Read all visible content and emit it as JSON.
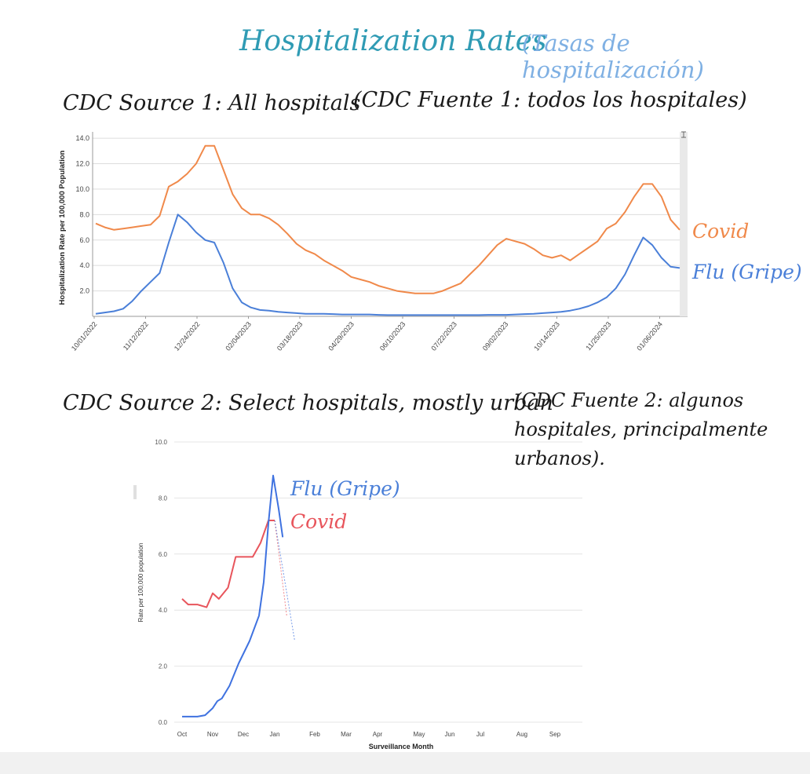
{
  "header": {
    "title": "Hospitalization Rates",
    "title_translation": "(Tasas de hospitalización)"
  },
  "section1": {
    "heading": "CDC Source 1: All hospitals",
    "heading_translation": "(CDC Fuente 1: todos los hospitales)",
    "label_covid": "Covid",
    "label_flu": "Flu (Gripe)"
  },
  "section2": {
    "heading": "CDC Source 2: Select hospitals, mostly urban",
    "heading_translation": "(CDC Fuente 2: algunos hospitales, principalmente urbanos).",
    "label_flu": "Flu (Gripe)",
    "label_covid": "Covid"
  },
  "colors": {
    "title": "#2f9bb4",
    "translation": "#7fb0e3",
    "covid_chart1": "#f0894a",
    "flu_chart1": "#4a7fd8",
    "covid_chart2": "#e8555c",
    "flu_chart2": "#3f72e0",
    "grid": "#dddddd"
  },
  "chart_data": [
    {
      "type": "line",
      "title": "",
      "xlabel": "",
      "ylabel": "Hospitalization Rate per 100,000 Population",
      "ylim": [
        0,
        14.5
      ],
      "yticks": [
        2.0,
        4.0,
        6.0,
        8.0,
        10.0,
        12.0,
        14.0
      ],
      "ytick_labels": [
        "2.0",
        "4.0",
        "6.0",
        "8.0",
        "10.0",
        "12.0",
        "14.0"
      ],
      "xtick_labels": [
        "10/01/2022",
        "11/12/2022",
        "12/24/2022",
        "02/04/2023",
        "03/18/2023",
        "04/29/2023",
        "06/10/2023",
        "07/22/2023",
        "09/02/2023",
        "10/14/2023",
        "11/25/2023",
        "01/06/2024"
      ],
      "grid": true,
      "series": [
        {
          "name": "Covid",
          "color": "#f0894a",
          "points": [
            [
              0,
              7.3
            ],
            [
              1,
              7.0
            ],
            [
              2,
              6.8
            ],
            [
              3,
              6.9
            ],
            [
              4,
              7.0
            ],
            [
              5,
              7.1
            ],
            [
              6,
              7.2
            ],
            [
              7,
              7.9
            ],
            [
              8,
              10.2
            ],
            [
              9,
              10.6
            ],
            [
              10,
              11.2
            ],
            [
              11,
              12.0
            ],
            [
              12,
              13.4
            ],
            [
              13,
              13.4
            ],
            [
              14,
              11.5
            ],
            [
              15,
              9.6
            ],
            [
              16,
              8.5
            ],
            [
              17,
              8.0
            ],
            [
              18,
              8.0
            ],
            [
              19,
              7.7
            ],
            [
              20,
              7.2
            ],
            [
              21,
              6.5
            ],
            [
              22,
              5.7
            ],
            [
              23,
              5.2
            ],
            [
              24,
              4.9
            ],
            [
              25,
              4.4
            ],
            [
              26,
              4.0
            ],
            [
              27,
              3.6
            ],
            [
              28,
              3.1
            ],
            [
              29,
              2.9
            ],
            [
              30,
              2.7
            ],
            [
              31,
              2.4
            ],
            [
              32,
              2.2
            ],
            [
              33,
              2.0
            ],
            [
              34,
              1.9
            ],
            [
              35,
              1.8
            ],
            [
              36,
              1.8
            ],
            [
              37,
              1.8
            ],
            [
              38,
              2.0
            ],
            [
              39,
              2.3
            ],
            [
              40,
              2.6
            ],
            [
              41,
              3.3
            ],
            [
              42,
              4.0
            ],
            [
              43,
              4.8
            ],
            [
              44,
              5.6
            ],
            [
              45,
              6.1
            ],
            [
              46,
              5.9
            ],
            [
              47,
              5.7
            ],
            [
              48,
              5.3
            ],
            [
              49,
              4.8
            ],
            [
              50,
              4.6
            ],
            [
              51,
              4.8
            ],
            [
              52,
              4.4
            ],
            [
              53,
              4.9
            ],
            [
              54,
              5.4
            ],
            [
              55,
              5.9
            ],
            [
              56,
              6.9
            ],
            [
              57,
              7.3
            ],
            [
              58,
              8.2
            ],
            [
              59,
              9.4
            ],
            [
              60,
              10.4
            ],
            [
              61,
              10.4
            ],
            [
              62,
              9.4
            ],
            [
              63,
              7.6
            ],
            [
              64,
              6.8
            ]
          ]
        },
        {
          "name": "Flu (Gripe)",
          "color": "#4a7fd8",
          "points": [
            [
              0,
              0.2
            ],
            [
              1,
              0.3
            ],
            [
              2,
              0.4
            ],
            [
              3,
              0.6
            ],
            [
              4,
              1.2
            ],
            [
              5,
              2.0
            ],
            [
              6,
              2.7
            ],
            [
              7,
              3.4
            ],
            [
              8,
              5.8
            ],
            [
              9,
              8.0
            ],
            [
              10,
              7.4
            ],
            [
              11,
              6.6
            ],
            [
              12,
              6.0
            ],
            [
              13,
              5.8
            ],
            [
              14,
              4.2
            ],
            [
              15,
              2.2
            ],
            [
              16,
              1.1
            ],
            [
              17,
              0.7
            ],
            [
              18,
              0.5
            ],
            [
              19,
              0.45
            ],
            [
              20,
              0.35
            ],
            [
              21,
              0.3
            ],
            [
              22,
              0.25
            ],
            [
              23,
              0.2
            ],
            [
              24,
              0.2
            ],
            [
              25,
              0.2
            ],
            [
              26,
              0.18
            ],
            [
              27,
              0.15
            ],
            [
              28,
              0.15
            ],
            [
              29,
              0.15
            ],
            [
              30,
              0.15
            ],
            [
              31,
              0.12
            ],
            [
              32,
              0.1
            ],
            [
              33,
              0.1
            ],
            [
              34,
              0.1
            ],
            [
              35,
              0.1
            ],
            [
              36,
              0.1
            ],
            [
              37,
              0.1
            ],
            [
              38,
              0.1
            ],
            [
              39,
              0.1
            ],
            [
              40,
              0.1
            ],
            [
              41,
              0.1
            ],
            [
              42,
              0.1
            ],
            [
              43,
              0.12
            ],
            [
              44,
              0.12
            ],
            [
              45,
              0.12
            ],
            [
              46,
              0.15
            ],
            [
              47,
              0.18
            ],
            [
              48,
              0.2
            ],
            [
              49,
              0.25
            ],
            [
              50,
              0.3
            ],
            [
              51,
              0.35
            ],
            [
              52,
              0.45
            ],
            [
              53,
              0.6
            ],
            [
              54,
              0.8
            ],
            [
              55,
              1.1
            ],
            [
              56,
              1.5
            ],
            [
              57,
              2.2
            ],
            [
              58,
              3.3
            ],
            [
              59,
              4.8
            ],
            [
              60,
              6.2
            ],
            [
              61,
              5.6
            ],
            [
              62,
              4.6
            ],
            [
              63,
              3.9
            ],
            [
              64,
              3.8
            ]
          ]
        }
      ]
    },
    {
      "type": "line",
      "title": "",
      "xlabel": "Surveillance Month",
      "ylabel": "Rate per 100,000 population",
      "ylim": [
        0,
        10
      ],
      "yticks": [
        0.0,
        2.0,
        4.0,
        6.0,
        8.0,
        10.0
      ],
      "ytick_labels": [
        "0.0",
        "2.0",
        "4.0",
        "6.0",
        "8.0",
        "10.0"
      ],
      "xtick_labels": [
        "Oct",
        "Nov",
        "Dec",
        "Jan",
        "Feb",
        "Mar",
        "Apr",
        "May",
        "Jun",
        "Jul",
        "Aug",
        "Sep"
      ],
      "grid": true,
      "series": [
        {
          "name": "Covid",
          "color": "#e8555c",
          "points": [
            [
              0,
              4.4
            ],
            [
              0.2,
              4.2
            ],
            [
              0.5,
              4.2
            ],
            [
              0.8,
              4.1
            ],
            [
              1.0,
              4.6
            ],
            [
              1.2,
              4.4
            ],
            [
              1.5,
              4.8
            ],
            [
              1.75,
              5.9
            ],
            [
              2.0,
              5.9
            ],
            [
              2.3,
              5.9
            ],
            [
              2.55,
              6.4
            ],
            [
              2.8,
              7.2
            ],
            [
              3.0,
              7.2
            ]
          ],
          "incomplete": [
            [
              3.0,
              7.2
            ],
            [
              3.3,
              3.8
            ]
          ]
        },
        {
          "name": "Flu (Gripe)",
          "color": "#3f72e0",
          "points": [
            [
              0,
              0.2
            ],
            [
              0.5,
              0.2
            ],
            [
              0.75,
              0.25
            ],
            [
              1.0,
              0.5
            ],
            [
              1.15,
              0.75
            ],
            [
              1.3,
              0.85
            ],
            [
              1.55,
              1.3
            ],
            [
              1.85,
              2.1
            ],
            [
              2.2,
              2.9
            ],
            [
              2.5,
              3.8
            ],
            [
              2.65,
              5.0
            ],
            [
              2.8,
              7.1
            ],
            [
              2.95,
              8.8
            ],
            [
              3.1,
              7.6
            ],
            [
              3.2,
              6.6
            ]
          ],
          "incomplete": [
            [
              3.0,
              7.2
            ],
            [
              3.5,
              2.9
            ]
          ]
        }
      ]
    }
  ]
}
